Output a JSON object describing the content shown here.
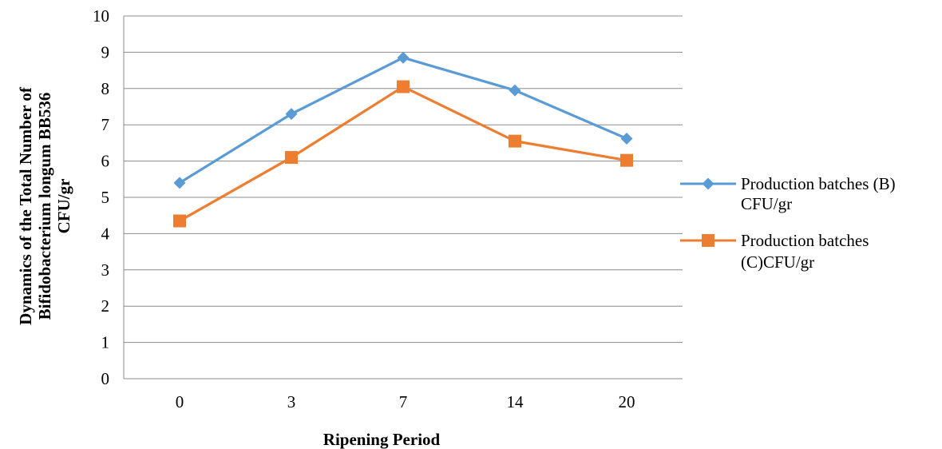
{
  "chart_data": {
    "type": "line",
    "categories": [
      "0",
      "3",
      "7",
      "14",
      "20"
    ],
    "series": [
      {
        "name": "Production batches (B) CFU/gr",
        "name_lines": [
          "Production batches (B)",
          "CFU/gr"
        ],
        "values": [
          5.4,
          7.3,
          8.85,
          7.95,
          6.62
        ],
        "color": "#5B9BD5",
        "marker": "diamond"
      },
      {
        "name": "Production batches (C)CFU/gr",
        "name_lines": [
          "Production batches",
          "(C)CFU/gr"
        ],
        "values": [
          4.35,
          6.1,
          8.05,
          6.55,
          6.02
        ],
        "color": "#ED7D31",
        "marker": "square"
      }
    ],
    "xlabel": "Ripening Period",
    "ylabel_lines": [
      "Dynamics of the Total Number of",
      "Bifidobacterium longum BB536",
      "CFU/gr"
    ],
    "ylim": [
      0,
      10
    ],
    "yticks": [
      "0",
      "1",
      "2",
      "3",
      "4",
      "5",
      "6",
      "7",
      "8",
      "9",
      "10"
    ],
    "grid": true,
    "legend_position": "right"
  }
}
